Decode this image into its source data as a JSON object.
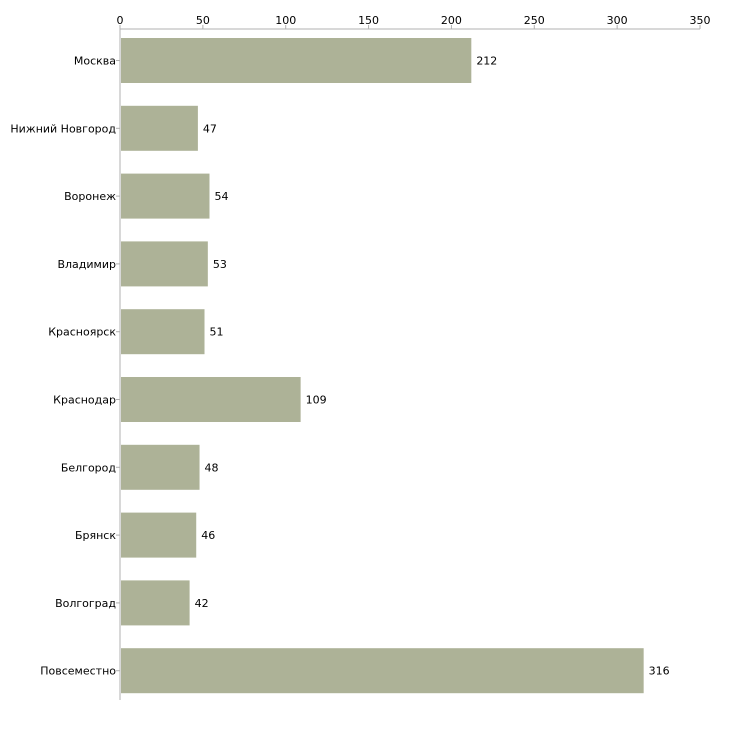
{
  "chart_data": {
    "type": "bar",
    "orientation": "horizontal",
    "categories": [
      "Москва",
      "Нижний Новгород",
      "Воронеж",
      "Владимир",
      "Красноярск",
      "Краснодар",
      "Белгород",
      "Брянск",
      "Волгоград",
      "Повсеместно"
    ],
    "values": [
      212,
      47,
      54,
      53,
      51,
      109,
      48,
      46,
      42,
      316
    ],
    "x_ticks": [
      0,
      50,
      100,
      150,
      200,
      250,
      300,
      350
    ],
    "xlim": [
      0,
      350
    ],
    "x_axis_position": "top",
    "title": "",
    "xlabel": "",
    "ylabel": "",
    "grid": false,
    "bar_color": "#adb297",
    "axis_color": "#b0b0b0"
  }
}
